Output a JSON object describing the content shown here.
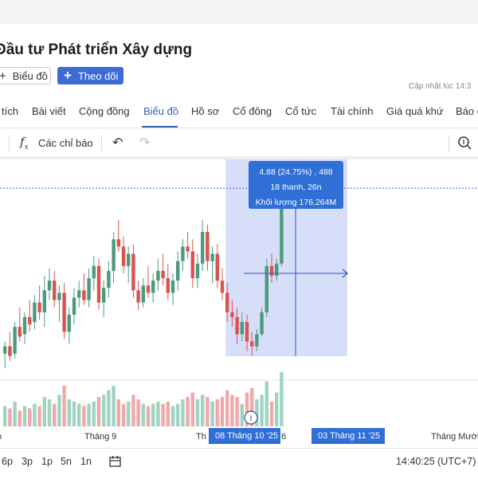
{
  "header": {
    "company_name": "Đầu tư Phát triển Xây dựng",
    "chart_button_label": "Biểu đồ",
    "follow_button_label": "Theo dõi",
    "updated_text": "Cập nhật lúc 14:3"
  },
  "tabs": [
    {
      "label": "tích"
    },
    {
      "label": "Bài viết"
    },
    {
      "label": "Cộng đồng"
    },
    {
      "label": "Biểu đồ",
      "active": true
    },
    {
      "label": "Hồ sơ"
    },
    {
      "label": "Cổ đông"
    },
    {
      "label": "Cổ tức"
    },
    {
      "label": "Tài chính"
    },
    {
      "label": "Giá quá khứ"
    },
    {
      "label": "Báo c"
    }
  ],
  "toolbar": {
    "indicators_label": "Các chỉ báo",
    "icons": [
      "fx-icon",
      "undo-icon",
      "redo-icon",
      "zoom-icon"
    ]
  },
  "tooltip": {
    "line1": "4.88 (24.75%) , 488",
    "line2": "18 thanh, 26n",
    "line3": "Khối lượng 176.264M"
  },
  "x_axis": {
    "labels": [
      "n",
      "Tháng 9",
      "Th",
      "6",
      "Tháng Mười"
    ],
    "range_start": "08 Tháng 10 '25",
    "range_end": "03 Tháng 11 '25",
    "event_marker": "I"
  },
  "bottom": {
    "periods": [
      "6p",
      "3p",
      "1p",
      "5n",
      "1n"
    ],
    "clock": "14:40:25 (UTC+7)"
  },
  "colors": {
    "up": "#4a9a7e",
    "down": "#d9534f",
    "up_volume": "#9fd3c2",
    "down_volume": "#f0a9a9",
    "accent": "#2f6fd6",
    "selection": "#c9d3f7"
  },
  "chart_data": {
    "type": "candlestick",
    "candles": [
      {
        "o": 3.52,
        "h": 3.62,
        "l": 3.4,
        "c": 3.58,
        "v": 0.9
      },
      {
        "o": 3.58,
        "h": 3.7,
        "l": 3.46,
        "c": 3.5,
        "v": 0.8
      },
      {
        "o": 3.52,
        "h": 3.78,
        "l": 3.48,
        "c": 3.74,
        "v": 1.1
      },
      {
        "o": 3.74,
        "h": 3.9,
        "l": 3.62,
        "c": 3.66,
        "v": 0.7
      },
      {
        "o": 3.68,
        "h": 3.86,
        "l": 3.6,
        "c": 3.82,
        "v": 0.9
      },
      {
        "o": 3.82,
        "h": 3.96,
        "l": 3.7,
        "c": 3.76,
        "v": 0.8
      },
      {
        "o": 3.78,
        "h": 4.0,
        "l": 3.72,
        "c": 3.94,
        "v": 1.0
      },
      {
        "o": 3.94,
        "h": 4.08,
        "l": 3.8,
        "c": 3.86,
        "v": 0.9
      },
      {
        "o": 3.86,
        "h": 4.16,
        "l": 3.74,
        "c": 4.04,
        "v": 1.3
      },
      {
        "o": 4.04,
        "h": 4.22,
        "l": 3.96,
        "c": 4.12,
        "v": 1.2
      },
      {
        "o": 4.12,
        "h": 4.2,
        "l": 3.9,
        "c": 3.96,
        "v": 1.0
      },
      {
        "o": 3.96,
        "h": 4.08,
        "l": 3.78,
        "c": 4.02,
        "v": 1.4
      },
      {
        "o": 4.02,
        "h": 4.1,
        "l": 3.64,
        "c": 3.7,
        "v": 1.8
      },
      {
        "o": 3.7,
        "h": 3.9,
        "l": 3.6,
        "c": 3.84,
        "v": 1.2
      },
      {
        "o": 3.84,
        "h": 4.06,
        "l": 3.76,
        "c": 3.98,
        "v": 1.1
      },
      {
        "o": 3.98,
        "h": 4.12,
        "l": 3.9,
        "c": 4.04,
        "v": 1.0
      },
      {
        "o": 4.04,
        "h": 4.18,
        "l": 3.92,
        "c": 3.96,
        "v": 0.9
      },
      {
        "o": 3.96,
        "h": 4.22,
        "l": 3.9,
        "c": 4.14,
        "v": 1.0
      },
      {
        "o": 4.14,
        "h": 4.32,
        "l": 4.04,
        "c": 4.24,
        "v": 1.1
      },
      {
        "o": 4.24,
        "h": 4.3,
        "l": 3.88,
        "c": 3.94,
        "v": 1.3
      },
      {
        "o": 3.94,
        "h": 4.12,
        "l": 3.82,
        "c": 4.06,
        "v": 1.4
      },
      {
        "o": 4.06,
        "h": 4.28,
        "l": 3.98,
        "c": 4.2,
        "v": 1.6
      },
      {
        "o": 4.2,
        "h": 4.52,
        "l": 4.1,
        "c": 4.46,
        "v": 1.8
      },
      {
        "o": 4.46,
        "h": 4.62,
        "l": 4.36,
        "c": 4.4,
        "v": 1.2
      },
      {
        "o": 4.4,
        "h": 4.48,
        "l": 4.18,
        "c": 4.24,
        "v": 1.0
      },
      {
        "o": 4.24,
        "h": 4.4,
        "l": 4.1,
        "c": 4.34,
        "v": 1.1
      },
      {
        "o": 4.34,
        "h": 4.42,
        "l": 3.98,
        "c": 4.04,
        "v": 1.4
      },
      {
        "o": 4.04,
        "h": 4.12,
        "l": 3.88,
        "c": 3.94,
        "v": 1.2
      },
      {
        "o": 3.94,
        "h": 4.14,
        "l": 3.9,
        "c": 4.08,
        "v": 1.0
      },
      {
        "o": 4.08,
        "h": 4.24,
        "l": 3.98,
        "c": 4.02,
        "v": 0.9
      },
      {
        "o": 4.02,
        "h": 4.18,
        "l": 3.94,
        "c": 4.12,
        "v": 1.0
      },
      {
        "o": 4.12,
        "h": 4.3,
        "l": 4.04,
        "c": 4.2,
        "v": 1.1
      },
      {
        "o": 4.2,
        "h": 4.34,
        "l": 4.08,
        "c": 4.14,
        "v": 1.0
      },
      {
        "o": 4.14,
        "h": 4.26,
        "l": 3.96,
        "c": 4.02,
        "v": 1.1
      },
      {
        "o": 4.02,
        "h": 4.18,
        "l": 3.92,
        "c": 4.12,
        "v": 0.9
      },
      {
        "o": 4.12,
        "h": 4.36,
        "l": 4.04,
        "c": 4.28,
        "v": 1.0
      },
      {
        "o": 4.28,
        "h": 4.46,
        "l": 4.2,
        "c": 4.4,
        "v": 1.2
      },
      {
        "o": 4.4,
        "h": 4.52,
        "l": 4.3,
        "c": 4.36,
        "v": 1.3
      },
      {
        "o": 4.36,
        "h": 4.46,
        "l": 4.06,
        "c": 4.14,
        "v": 1.5
      },
      {
        "o": 4.14,
        "h": 4.34,
        "l": 4.06,
        "c": 4.26,
        "v": 1.2
      },
      {
        "o": 4.26,
        "h": 4.62,
        "l": 4.2,
        "c": 4.52,
        "v": 1.4
      },
      {
        "o": 4.52,
        "h": 4.58,
        "l": 4.2,
        "c": 4.28,
        "v": 1.3
      },
      {
        "o": 4.28,
        "h": 4.4,
        "l": 4.1,
        "c": 4.34,
        "v": 1.1
      },
      {
        "o": 4.34,
        "h": 4.42,
        "l": 4.06,
        "c": 4.12,
        "v": 1.2
      },
      {
        "o": 4.12,
        "h": 4.22,
        "l": 3.96,
        "c": 4.02,
        "v": 1.3
      },
      {
        "o": 4.02,
        "h": 4.1,
        "l": 3.78,
        "c": 3.86,
        "v": 1.6
      },
      {
        "o": 3.86,
        "h": 3.96,
        "l": 3.74,
        "c": 3.82,
        "v": 1.4
      },
      {
        "o": 3.82,
        "h": 3.9,
        "l": 3.6,
        "c": 3.68,
        "v": 1.3
      },
      {
        "o": 3.68,
        "h": 3.86,
        "l": 3.62,
        "c": 3.78,
        "v": 1.0
      },
      {
        "o": 3.78,
        "h": 3.84,
        "l": 3.54,
        "c": 3.62,
        "v": 1.5
      },
      {
        "o": 3.62,
        "h": 3.7,
        "l": 3.5,
        "c": 3.58,
        "v": 1.7
      },
      {
        "o": 3.58,
        "h": 3.72,
        "l": 3.54,
        "c": 3.68,
        "v": 1.2
      },
      {
        "o": 3.68,
        "h": 3.9,
        "l": 3.66,
        "c": 3.86,
        "v": 1.4
      },
      {
        "o": 3.86,
        "h": 4.3,
        "l": 3.82,
        "c": 4.24,
        "v": 2.0
      },
      {
        "o": 4.24,
        "h": 4.34,
        "l": 4.1,
        "c": 4.16,
        "v": 1.1
      },
      {
        "o": 4.16,
        "h": 4.3,
        "l": 4.12,
        "c": 4.26,
        "v": 1.5
      },
      {
        "o": 4.26,
        "h": 4.88,
        "l": 4.24,
        "c": 4.82,
        "v": 2.4
      }
    ],
    "ylim": [
      3.4,
      4.92
    ],
    "reference_line": 4.88,
    "selection_start_index": 45
  }
}
